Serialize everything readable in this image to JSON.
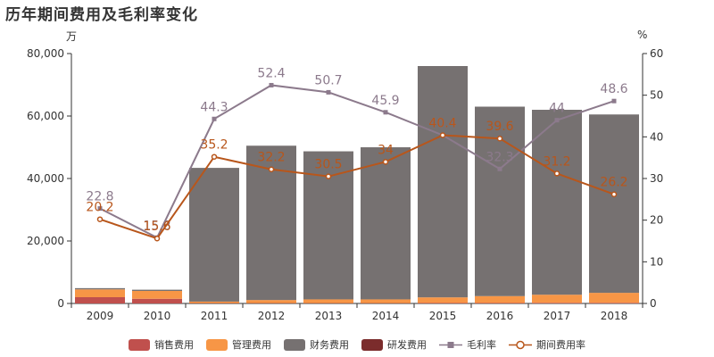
{
  "title": "历年期间费用及毛利率变化",
  "units": {
    "left": "万",
    "right": "%"
  },
  "chart_data": {
    "type": "bar",
    "categories": [
      "2009",
      "2010",
      "2011",
      "2012",
      "2013",
      "2014",
      "2015",
      "2016",
      "2017",
      "2018"
    ],
    "left_axis": {
      "ylim": [
        0,
        80000
      ],
      "ticks": [
        0,
        20000,
        40000,
        60000,
        80000
      ],
      "tick_labels": [
        "0",
        "20,000",
        "40,000",
        "60,000",
        "80,000"
      ]
    },
    "right_axis": {
      "ylim": [
        0,
        60
      ],
      "ticks": [
        0,
        10,
        20,
        30,
        40,
        50,
        60
      ],
      "tick_labels": [
        "0",
        "10",
        "20",
        "30",
        "40",
        "50",
        "60"
      ]
    },
    "bar_series": [
      {
        "name": "销售费用",
        "color": "#c0504d",
        "values": [
          2000,
          1500,
          100,
          100,
          100,
          100,
          150,
          150,
          200,
          200
        ]
      },
      {
        "name": "管理费用",
        "color": "#f79646",
        "values": [
          2500,
          2500,
          500,
          1000,
          1200,
          1200,
          1800,
          2200,
          2600,
          3200
        ]
      },
      {
        "name": "财务费用",
        "color": "#767171",
        "values": [
          400,
          400,
          42800,
          49400,
          47400,
          48700,
          74050,
          60650,
          59200,
          57100
        ]
      },
      {
        "name": "研发费用",
        "color": "#7b2c2c",
        "values": [
          0,
          0,
          0,
          0,
          0,
          0,
          0,
          0,
          0,
          0
        ]
      }
    ],
    "line_series": [
      {
        "name": "毛利率",
        "color": "#8c7a8c",
        "marker": "square",
        "values": [
          22.8,
          15.8,
          44.3,
          52.4,
          50.7,
          45.9,
          40.4,
          32.3,
          44,
          48.6
        ],
        "labels": [
          "22.8",
          "15.8",
          "44.3",
          "52.4",
          "50.7",
          "45.9",
          "40.4",
          "32.3",
          "44",
          "48.6"
        ]
      },
      {
        "name": "期间费用率",
        "color": "#b8561b",
        "marker": "circle",
        "values": [
          20.2,
          15.6,
          35.2,
          32.2,
          30.5,
          34,
          40.4,
          39.6,
          31.2,
          26.2
        ],
        "labels": [
          "20.2",
          "15.6",
          "35.2",
          "32.2",
          "30.5",
          "34",
          "40.4",
          "39.6",
          "31.2",
          "26.2"
        ]
      }
    ]
  }
}
